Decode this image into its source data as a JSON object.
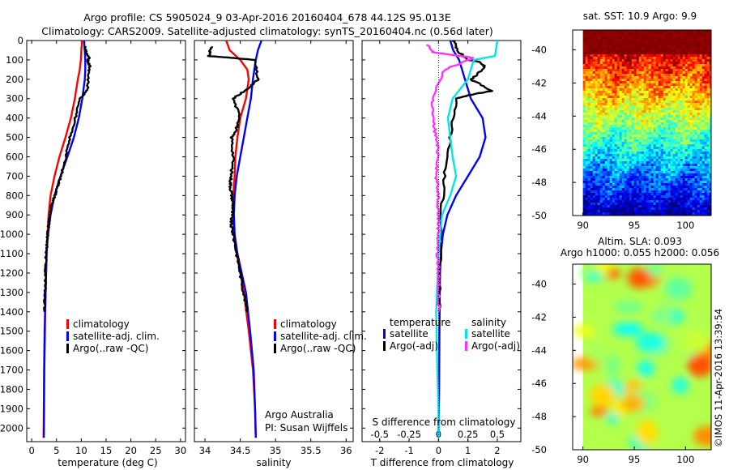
{
  "header": {
    "line1": "Argo profile: CS 5905024_9 03-Apr-2016 20160404_678 44.12S 95.013E",
    "line2": "Climatology: CARS2009. Satellite-adjusted climatology: synTS_20160404.nc (0.56d later)"
  },
  "colors": {
    "climatology": "#ff0000",
    "satellite": "#0000ff",
    "argo": "#000000",
    "sal_satellite": "#00e5e5",
    "sal_argo": "#ff33ff"
  },
  "chart_data": [
    {
      "type": "line",
      "panel": "temperature",
      "xlabel": "temperature (deg C)",
      "ylabel": "",
      "xlim": [
        -1,
        31
      ],
      "ylim": [
        2070,
        0
      ],
      "y_reversed": true,
      "xticks": [
        0,
        5,
        10,
        15,
        20,
        25,
        30
      ],
      "yticks": [
        0,
        100,
        200,
        300,
        400,
        500,
        600,
        700,
        800,
        900,
        1000,
        1100,
        1200,
        1300,
        1400,
        1500,
        1600,
        1700,
        1800,
        1900,
        2000
      ],
      "legend": [
        "climatology",
        "satellite-adj. clim.",
        "Argo(..raw -QC)"
      ],
      "series": [
        {
          "name": "climatology",
          "color": "#ff0000",
          "x": [
            10.2,
            10.1,
            10.0,
            9.9,
            9.7,
            9.3,
            8.7,
            7.9,
            6.8,
            5.6,
            4.6,
            3.8,
            3.4,
            3.2,
            3.0,
            2.9,
            2.8,
            2.7,
            2.6,
            2.5,
            2.45,
            2.4
          ],
          "y": [
            0,
            20,
            50,
            100,
            150,
            200,
            300,
            400,
            500,
            600,
            700,
            800,
            900,
            1000,
            1100,
            1200,
            1300,
            1400,
            1500,
            1700,
            1900,
            2050
          ]
        },
        {
          "name": "satellite-adj. clim.",
          "color": "#0000ff",
          "x": [
            10.6,
            10.6,
            10.7,
            10.8,
            10.8,
            10.7,
            10.2,
            9.5,
            8.5,
            7.2,
            5.8,
            4.6,
            3.8,
            3.3,
            3.0,
            2.9,
            2.8,
            2.7,
            2.65,
            2.55,
            2.5,
            2.45
          ],
          "y": [
            0,
            20,
            50,
            100,
            150,
            200,
            300,
            400,
            500,
            600,
            700,
            800,
            900,
            1000,
            1100,
            1200,
            1300,
            1400,
            1500,
            1700,
            1900,
            2050
          ]
        },
        {
          "name": "Argo(..raw -QC)",
          "color": "#000000",
          "x": [
            10.8,
            10.9,
            11.6,
            11.2,
            11.7,
            11.4,
            11.3,
            9.8,
            8.8,
            7.7,
            6.9,
            5.9,
            5.3,
            4.7,
            4.0,
            3.6,
            3.4,
            3.2,
            3.1,
            2.9,
            2.8,
            2.7,
            2.6
          ],
          "y": [
            30,
            60,
            90,
            110,
            130,
            170,
            250,
            300,
            400,
            500,
            600,
            700,
            750,
            800,
            850,
            900,
            950,
            1000,
            1050,
            1100,
            1200,
            1300,
            1400
          ]
        }
      ]
    },
    {
      "type": "line",
      "panel": "salinity",
      "xlabel": "salinity",
      "ylabel": "",
      "xlim": [
        33.85,
        36.1
      ],
      "ylim": [
        2070,
        0
      ],
      "y_reversed": true,
      "xticks": [
        34,
        34.5,
        35,
        35.5,
        36
      ],
      "legend": [
        "climatology",
        "satellite-adj. clim.",
        "Argo(..raw -QC)"
      ],
      "annotation": [
        "Argo Australia",
        "PI: Susan Wijffels"
      ],
      "series": [
        {
          "name": "climatology",
          "color": "#ff0000",
          "x": [
            34.3,
            34.35,
            34.5,
            34.6,
            34.62,
            34.58,
            34.5,
            34.46,
            34.43,
            34.42,
            34.4,
            34.4,
            34.41,
            34.45,
            34.5,
            34.55,
            34.62,
            34.68,
            34.71,
            34.72
          ],
          "y": [
            0,
            50,
            100,
            150,
            200,
            300,
            400,
            500,
            600,
            700,
            800,
            900,
            1000,
            1100,
            1200,
            1300,
            1500,
            1700,
            1900,
            2050
          ]
        },
        {
          "name": "satellite-adj. clim.",
          "color": "#0000ff",
          "x": [
            34.8,
            34.75,
            34.72,
            34.7,
            34.68,
            34.65,
            34.6,
            34.55,
            34.5,
            34.45,
            34.42,
            34.41,
            34.42,
            34.46,
            34.52,
            34.58,
            34.64,
            34.69,
            34.71,
            34.72
          ],
          "y": [
            0,
            50,
            100,
            150,
            200,
            300,
            400,
            500,
            600,
            700,
            800,
            900,
            1000,
            1100,
            1200,
            1300,
            1500,
            1700,
            1900,
            2050
          ]
        },
        {
          "name": "Argo(..raw -QC)",
          "color": "#000000",
          "x": [
            34.1,
            34.05,
            34.4,
            34.7,
            34.75,
            34.6,
            34.4,
            34.5,
            34.45,
            34.38,
            34.4,
            34.37,
            34.36,
            34.38,
            34.4,
            34.38,
            34.37,
            34.4,
            34.45,
            34.5,
            34.55,
            34.6
          ],
          "y": [
            30,
            80,
            90,
            100,
            200,
            250,
            300,
            400,
            450,
            500,
            600,
            700,
            750,
            800,
            850,
            900,
            950,
            1000,
            1100,
            1200,
            1300,
            1400
          ]
        }
      ]
    },
    {
      "type": "line",
      "panel": "difference",
      "xlabel": "T difference from climatology",
      "xlabel_top": "S difference from climatology",
      "xlim": [
        -2.6,
        2.8
      ],
      "xlim_top": [
        -0.65,
        0.7
      ],
      "ylim": [
        2070,
        0
      ],
      "y_reversed": true,
      "xticks": [
        -2,
        -1,
        0,
        1,
        2
      ],
      "xticks_top": [
        -0.5,
        -0.25,
        0,
        0.25,
        0.5
      ],
      "legend_titles": [
        "temperature",
        "salinity"
      ],
      "legend": [
        "satellite",
        "Argo(-adj)",
        "satellite",
        "Argo(-adj)"
      ],
      "series": [
        {
          "name": "temperature satellite",
          "color": "#0000ff",
          "axis": "T",
          "x": [
            0.4,
            0.5,
            0.7,
            0.9,
            1.1,
            1.5,
            1.6,
            1.4,
            1.0,
            0.6,
            0.3,
            0.15,
            0.08,
            0.05,
            0.03,
            0.02,
            0.0
          ],
          "y": [
            0,
            50,
            100,
            200,
            300,
            400,
            500,
            600,
            700,
            800,
            900,
            1000,
            1100,
            1200,
            1500,
            1800,
            2050
          ]
        },
        {
          "name": "temperature Argo(-adj)",
          "color": "#000000",
          "axis": "T",
          "x": [
            0.5,
            0.7,
            1.0,
            1.4,
            1.6,
            1.1,
            1.8,
            1.1,
            0.6,
            0.4,
            0.2,
            0.1,
            0.05,
            0.02
          ],
          "y": [
            0,
            60,
            100,
            110,
            140,
            200,
            260,
            280,
            300,
            500,
            700,
            900,
            1100,
            1400
          ]
        },
        {
          "name": "salinity satellite",
          "color": "#00e5e5",
          "axis": "S",
          "x": [
            0.5,
            0.48,
            0.3,
            0.25,
            0.12,
            0.08,
            0.1,
            0.12,
            0.15,
            0.1,
            0.03,
            0.0,
            -0.02,
            -0.01,
            0.0,
            0.0
          ],
          "y": [
            0,
            80,
            100,
            200,
            300,
            400,
            500,
            600,
            700,
            800,
            900,
            1100,
            1400,
            1700,
            1900,
            2050
          ]
        },
        {
          "name": "salinity Argo(-adj)",
          "color": "#ff33ff",
          "axis": "S",
          "x": [
            -0.1,
            -0.05,
            0.3,
            0.05,
            -0.05,
            -0.05,
            -0.02,
            0.0,
            -0.02,
            0.0,
            0.0,
            0.0,
            -0.01,
            0.0,
            0.0,
            0.0
          ],
          "y": [
            20,
            60,
            90,
            150,
            300,
            400,
            500,
            600,
            700,
            800,
            900,
            1000,
            1100,
            1200,
            1300,
            1400
          ]
        }
      ]
    },
    {
      "type": "heatmap",
      "panel": "sat_sst",
      "title": "sat. SST: 10.9 Argo: 9.9",
      "xlim": [
        89,
        102.5
      ],
      "ylim": [
        -50,
        -38.8
      ],
      "xticks": [
        90,
        95,
        100
      ],
      "yticks": [
        -40,
        -42,
        -44,
        -46,
        -48,
        -50
      ],
      "colorscale": "jet, warm at north, cold at south",
      "argo_position": [
        95.013,
        -44.12
      ]
    },
    {
      "type": "heatmap",
      "panel": "altim_sla",
      "title": "Altim. SLA: 0.093",
      "subtitle": "Argo h1000: 0.055 h2000: 0.056",
      "xlim": [
        89,
        102.5
      ],
      "ylim": [
        -50,
        -38.8
      ],
      "xticks": [
        90,
        95,
        100
      ],
      "yticks": [
        -40,
        -42,
        -44,
        -46,
        -48,
        -50
      ],
      "colorscale": "jet, mostly green/yellow"
    }
  ],
  "side_credit": "©IMOS 11-Apr-2016 13:39:54"
}
